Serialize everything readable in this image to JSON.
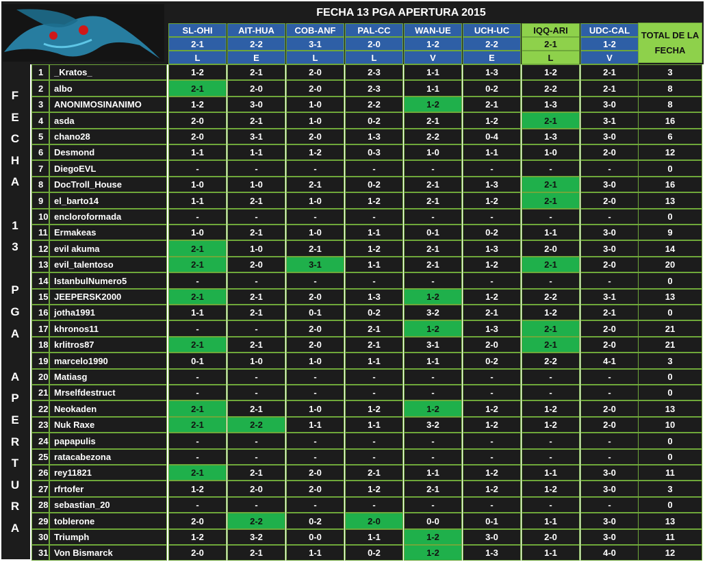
{
  "title": "FECHA 13 PGA APERTURA 2015",
  "side_label": [
    "F",
    "E",
    "C",
    "H",
    "A",
    "",
    "1",
    "3",
    "",
    "P",
    "G",
    "A",
    "",
    "A",
    "P",
    "E",
    "R",
    "T",
    "U",
    "R",
    "A"
  ],
  "total_header": "TOTAL DE LA FECHA",
  "matches": [
    {
      "name": "SL-OHI",
      "result": "2-1",
      "code": "L"
    },
    {
      "name": "AIT-HUA",
      "result": "2-2",
      "code": "E"
    },
    {
      "name": "COB-ANF",
      "result": "3-1",
      "code": "L"
    },
    {
      "name": "PAL-CC",
      "result": "2-0",
      "code": "L"
    },
    {
      "name": "WAN-UE",
      "result": "1-2",
      "code": "V"
    },
    {
      "name": "UCH-UC",
      "result": "2-2",
      "code": "E"
    },
    {
      "name": "IQQ-ARI",
      "result": "2-1",
      "code": "L",
      "highlight": true
    },
    {
      "name": "UDC-CAL",
      "result": "1-2",
      "code": "V"
    }
  ],
  "rows": [
    {
      "n": "1",
      "name": "_Kratos_",
      "p": [
        "1-2",
        "2-1",
        "2-0",
        "2-3",
        "1-1",
        "1-3",
        "1-2",
        "2-1"
      ],
      "total": "3"
    },
    {
      "n": "2",
      "name": "albo",
      "p": [
        "2-1",
        "2-0",
        "2-0",
        "2-3",
        "1-1",
        "0-2",
        "2-2",
        "2-1"
      ],
      "total": "8"
    },
    {
      "n": "3",
      "name": "ANONIMOSINANIMO",
      "p": [
        "1-2",
        "3-0",
        "1-0",
        "2-2",
        "1-2",
        "2-1",
        "1-3",
        "3-0"
      ],
      "total": "8"
    },
    {
      "n": "4",
      "name": "asda",
      "p": [
        "2-0",
        "2-1",
        "1-0",
        "0-2",
        "2-1",
        "1-2",
        "2-1",
        "3-1"
      ],
      "total": "16"
    },
    {
      "n": "5",
      "name": "chano28",
      "p": [
        "2-0",
        "3-1",
        "2-0",
        "1-3",
        "2-2",
        "0-4",
        "1-3",
        "3-0"
      ],
      "total": "6"
    },
    {
      "n": "6",
      "name": "Desmond",
      "p": [
        "1-1",
        "1-1",
        "1-2",
        "0-3",
        "1-0",
        "1-1",
        "1-0",
        "2-0"
      ],
      "total": "12"
    },
    {
      "n": "7",
      "name": "DiegoEVL",
      "p": [
        "-",
        "-",
        "-",
        "-",
        "-",
        "-",
        "-",
        "-"
      ],
      "total": "0"
    },
    {
      "n": "8",
      "name": "DocTroll_House",
      "p": [
        "1-0",
        "1-0",
        "2-1",
        "0-2",
        "2-1",
        "1-3",
        "2-1",
        "3-0"
      ],
      "total": "16"
    },
    {
      "n": "9",
      "name": "el_barto14",
      "p": [
        "1-1",
        "2-1",
        "1-0",
        "1-2",
        "2-1",
        "1-2",
        "2-1",
        "2-0"
      ],
      "total": "13"
    },
    {
      "n": "10",
      "name": "encloroformada",
      "p": [
        "-",
        "-",
        "-",
        "-",
        "-",
        "-",
        "-",
        "-"
      ],
      "total": "0"
    },
    {
      "n": "11",
      "name": "Ermakeas",
      "p": [
        "1-0",
        "2-1",
        "1-0",
        "1-1",
        "0-1",
        "0-2",
        "1-1",
        "3-0"
      ],
      "total": "9"
    },
    {
      "n": "12",
      "name": "evil akuma",
      "p": [
        "2-1",
        "1-0",
        "2-1",
        "1-2",
        "2-1",
        "1-3",
        "2-0",
        "3-0"
      ],
      "total": "14"
    },
    {
      "n": "13",
      "name": "evil_talentoso",
      "p": [
        "2-1",
        "2-0",
        "3-1",
        "1-1",
        "2-1",
        "1-2",
        "2-1",
        "2-0"
      ],
      "total": "20"
    },
    {
      "n": "14",
      "name": "IstanbulNumero5",
      "p": [
        "-",
        "-",
        "-",
        "-",
        "-",
        "-",
        "-",
        "-"
      ],
      "total": "0"
    },
    {
      "n": "15",
      "name": "JEEPERSK2000",
      "p": [
        "2-1",
        "2-1",
        "2-0",
        "1-3",
        "1-2",
        "1-2",
        "2-2",
        "3-1"
      ],
      "total": "13"
    },
    {
      "n": "16",
      "name": "jotha1991",
      "p": [
        "1-1",
        "2-1",
        "0-1",
        "0-2",
        "3-2",
        "2-1",
        "1-2",
        "2-1"
      ],
      "total": "0"
    },
    {
      "n": "17",
      "name": "khronos11",
      "p": [
        "-",
        "-",
        "2-0",
        "2-1",
        "1-2",
        "1-3",
        "2-1",
        "2-0"
      ],
      "total": "21"
    },
    {
      "n": "18",
      "name": "krlitros87",
      "p": [
        "2-1",
        "2-1",
        "2-0",
        "2-1",
        "3-1",
        "2-0",
        "2-1",
        "2-0"
      ],
      "total": "21"
    },
    {
      "n": "19",
      "name": "marcelo1990",
      "p": [
        "0-1",
        "1-0",
        "1-0",
        "1-1",
        "1-1",
        "0-2",
        "2-2",
        "4-1"
      ],
      "total": "3"
    },
    {
      "n": "20",
      "name": "Matiasg",
      "p": [
        "-",
        "-",
        "-",
        "-",
        "-",
        "-",
        "-",
        "-"
      ],
      "total": "0"
    },
    {
      "n": "21",
      "name": "Mrselfdestruct",
      "p": [
        "-",
        "-",
        "-",
        "-",
        "-",
        "-",
        "-",
        "-"
      ],
      "total": "0"
    },
    {
      "n": "22",
      "name": "Neokaden",
      "p": [
        "2-1",
        "2-1",
        "1-0",
        "1-2",
        "1-2",
        "1-2",
        "1-2",
        "2-0"
      ],
      "total": "13"
    },
    {
      "n": "23",
      "name": "Nuk Raxe",
      "p": [
        "2-1",
        "2-2",
        "1-1",
        "1-1",
        "3-2",
        "1-2",
        "1-2",
        "2-0"
      ],
      "total": "10"
    },
    {
      "n": "24",
      "name": "papapulis",
      "p": [
        "-",
        "-",
        "-",
        "-",
        "-",
        "-",
        "-",
        "-"
      ],
      "total": "0"
    },
    {
      "n": "25",
      "name": "ratacabezona",
      "p": [
        "-",
        "-",
        "-",
        "-",
        "-",
        "-",
        "-",
        "-"
      ],
      "total": "0"
    },
    {
      "n": "26",
      "name": "rey11821",
      "p": [
        "2-1",
        "2-1",
        "2-0",
        "2-1",
        "1-1",
        "1-2",
        "1-1",
        "3-0"
      ],
      "total": "11"
    },
    {
      "n": "27",
      "name": "rfrtofer",
      "p": [
        "1-2",
        "2-0",
        "2-0",
        "1-2",
        "2-1",
        "1-2",
        "1-2",
        "3-0"
      ],
      "total": "3"
    },
    {
      "n": "28",
      "name": "sebastian_20",
      "p": [
        "-",
        "-",
        "-",
        "-",
        "-",
        "-",
        "-",
        "-"
      ],
      "total": "0"
    },
    {
      "n": "29",
      "name": "toblerone",
      "p": [
        "2-0",
        "2-2",
        "0-2",
        "2-0",
        "0-0",
        "0-1",
        "1-1",
        "3-0"
      ],
      "total": "13"
    },
    {
      "n": "30",
      "name": "Triumph",
      "p": [
        "1-2",
        "3-2",
        "0-0",
        "1-1",
        "1-2",
        "3-0",
        "2-0",
        "3-0"
      ],
      "total": "11"
    },
    {
      "n": "31",
      "name": "Von Bismarck",
      "p": [
        "2-0",
        "2-1",
        "1-1",
        "0-2",
        "1-2",
        "1-3",
        "1-1",
        "4-0"
      ],
      "total": "12"
    }
  ],
  "colors": {
    "panel": "#1c1c1c",
    "border": "#6fa83a",
    "header": "#2e5fa6",
    "highlight": "#8ed14b",
    "exact": "#1fb04b"
  }
}
